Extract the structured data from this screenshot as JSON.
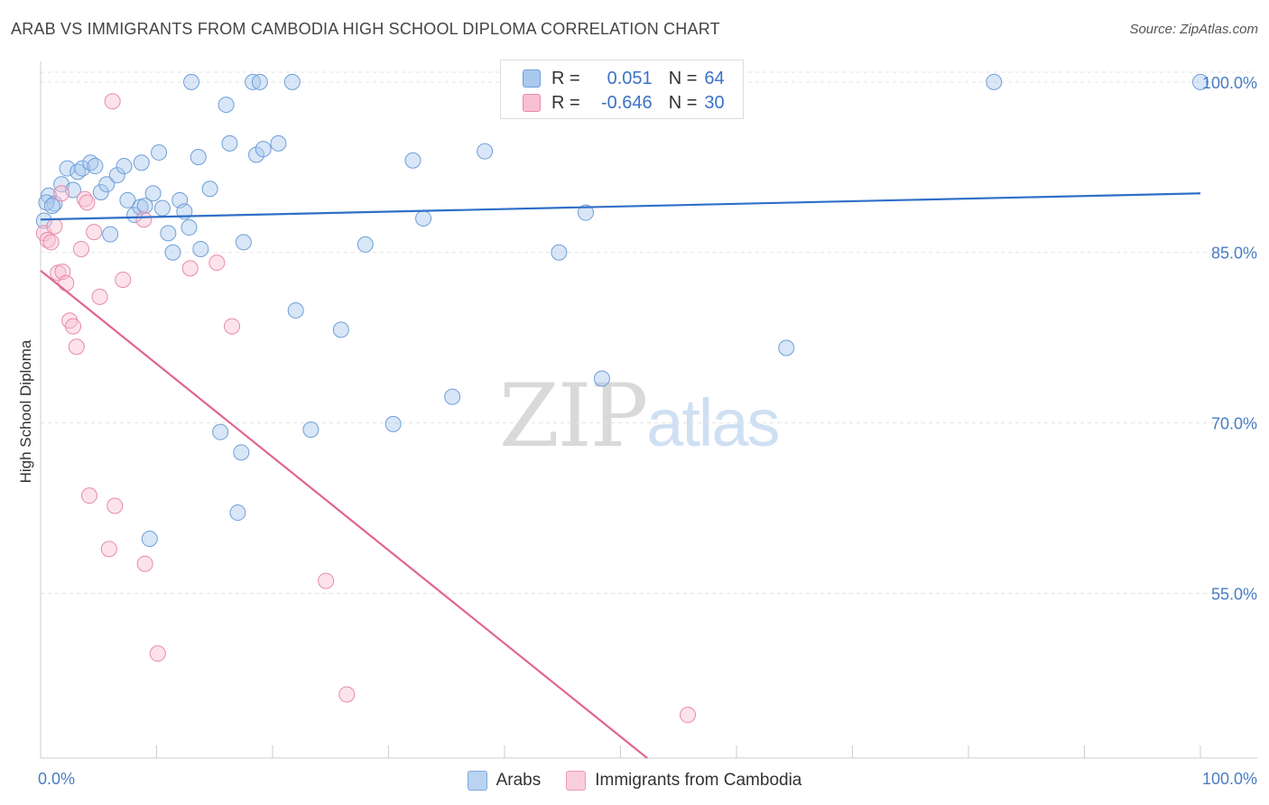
{
  "title": "ARAB VS IMMIGRANTS FROM CAMBODIA HIGH SCHOOL DIPLOMA CORRELATION CHART",
  "source": "Source: ZipAtlas.com",
  "watermark": {
    "zip": "ZIP",
    "atlas": "atlas"
  },
  "legend": {
    "rows": [
      {
        "r_label": "R =",
        "r_value": "0.051",
        "n_label": "N =",
        "n_value": "64",
        "color": "#a9c8ee",
        "border": "#6f9fd8"
      },
      {
        "r_label": "R =",
        "r_value": "-0.646",
        "n_label": "N =",
        "n_value": "30",
        "color": "#f8c0d2",
        "border": "#e88aa9"
      }
    ]
  },
  "bottom_legend": [
    {
      "label": "Arabs",
      "color": "#b9d3f1",
      "border": "#7fa8dc"
    },
    {
      "label": "Immigrants from Cambodia",
      "color": "#f9cedb",
      "border": "#eb9bb5"
    }
  ],
  "chart_data": {
    "type": "scatter",
    "title": "ARAB VS IMMIGRANTS FROM CAMBODIA HIGH SCHOOL DIPLOMA CORRELATION CHART",
    "xlabel": "",
    "ylabel": "High School Diploma",
    "xlim": [
      0,
      100
    ],
    "ylim": [
      40.5,
      101.5
    ],
    "x_tick_labels": [
      {
        "value": 0,
        "label": "0.0%"
      },
      {
        "value": 100,
        "label": "100.0%"
      }
    ],
    "y_tick_labels": [
      {
        "value": 100,
        "label": "100.0%"
      },
      {
        "value": 85,
        "label": "85.0%"
      },
      {
        "value": 70,
        "label": "70.0%"
      },
      {
        "value": 55,
        "label": "55.0%"
      }
    ],
    "grid": true,
    "series": [
      {
        "name": "Arabs",
        "color": "#6f9fd8",
        "fill": "rgba(169,200,238,0.45)",
        "trend": {
          "x": [
            0,
            100
          ],
          "y": [
            87.9,
            90.2
          ],
          "color": "#2f6fc8"
        },
        "points": [
          [
            0.3,
            87.8
          ],
          [
            0.7,
            90.0
          ],
          [
            1.2,
            89.3
          ],
          [
            1.8,
            91.0
          ],
          [
            2.3,
            92.4
          ],
          [
            2.8,
            90.5
          ],
          [
            3.2,
            92.1
          ],
          [
            3.6,
            92.4
          ],
          [
            4.3,
            92.9
          ],
          [
            4.7,
            92.6
          ],
          [
            5.2,
            90.3
          ],
          [
            5.7,
            91.0
          ],
          [
            6.0,
            86.6
          ],
          [
            6.6,
            91.8
          ],
          [
            7.2,
            92.6
          ],
          [
            7.5,
            89.6
          ],
          [
            8.1,
            88.3
          ],
          [
            8.6,
            89.0
          ],
          [
            8.7,
            92.9
          ],
          [
            9.0,
            89.1
          ],
          [
            9.7,
            90.2
          ],
          [
            10.2,
            93.8
          ],
          [
            10.5,
            88.9
          ],
          [
            11.0,
            86.7
          ],
          [
            11.4,
            85.0
          ],
          [
            12.0,
            89.6
          ],
          [
            12.4,
            88.6
          ],
          [
            12.8,
            87.2
          ],
          [
            13.0,
            100.0
          ],
          [
            13.6,
            93.4
          ],
          [
            13.8,
            85.3
          ],
          [
            14.6,
            90.6
          ],
          [
            16.0,
            98.0
          ],
          [
            16.3,
            94.6
          ],
          [
            17.5,
            85.9
          ],
          [
            18.3,
            100.0
          ],
          [
            18.6,
            93.6
          ],
          [
            18.9,
            100.0
          ],
          [
            19.2,
            94.1
          ],
          [
            20.5,
            94.6
          ],
          [
            21.7,
            100.0
          ],
          [
            22.0,
            79.9
          ],
          [
            25.9,
            78.2
          ],
          [
            28.0,
            85.7
          ],
          [
            32.1,
            93.1
          ],
          [
            33.0,
            88.0
          ],
          [
            35.5,
            72.3
          ],
          [
            38.3,
            93.9
          ],
          [
            44.7,
            85.0
          ],
          [
            47.0,
            88.5
          ],
          [
            47.3,
            100.0
          ],
          [
            48.4,
            73.9
          ],
          [
            57.1,
            100.0
          ],
          [
            64.3,
            76.6
          ],
          [
            82.2,
            100.0
          ],
          [
            100.0,
            100.0
          ],
          [
            23.3,
            69.4
          ],
          [
            15.5,
            69.2
          ],
          [
            17.3,
            67.4
          ],
          [
            30.4,
            69.9
          ],
          [
            17.0,
            62.1
          ],
          [
            9.4,
            59.8
          ],
          [
            0.5,
            89.4
          ],
          [
            1.0,
            89.1
          ]
        ]
      },
      {
        "name": "Immigrants from Cambodia",
        "color": "#e88aa9",
        "fill": "rgba(248,192,210,0.45)",
        "trend": {
          "x": [
            0,
            52.3
          ],
          "y": [
            83.4,
            40.5
          ],
          "color": "#e06592"
        },
        "points": [
          [
            0.3,
            86.7
          ],
          [
            0.6,
            86.1
          ],
          [
            0.9,
            85.9
          ],
          [
            1.2,
            87.3
          ],
          [
            1.5,
            83.2
          ],
          [
            1.9,
            83.3
          ],
          [
            2.2,
            82.3
          ],
          [
            2.5,
            79.0
          ],
          [
            2.8,
            78.5
          ],
          [
            3.1,
            76.7
          ],
          [
            3.5,
            85.3
          ],
          [
            3.8,
            89.7
          ],
          [
            4.0,
            89.4
          ],
          [
            4.6,
            86.8
          ],
          [
            5.1,
            81.1
          ],
          [
            6.2,
            98.3
          ],
          [
            7.1,
            82.6
          ],
          [
            8.9,
            87.9
          ],
          [
            12.9,
            83.6
          ],
          [
            15.2,
            84.1
          ],
          [
            16.5,
            78.5
          ],
          [
            4.2,
            63.6
          ],
          [
            6.4,
            62.7
          ],
          [
            5.9,
            58.9
          ],
          [
            9.0,
            57.6
          ],
          [
            24.6,
            56.1
          ],
          [
            10.1,
            49.7
          ],
          [
            26.4,
            46.1
          ],
          [
            55.8,
            44.3
          ],
          [
            1.8,
            90.2
          ]
        ]
      }
    ]
  }
}
